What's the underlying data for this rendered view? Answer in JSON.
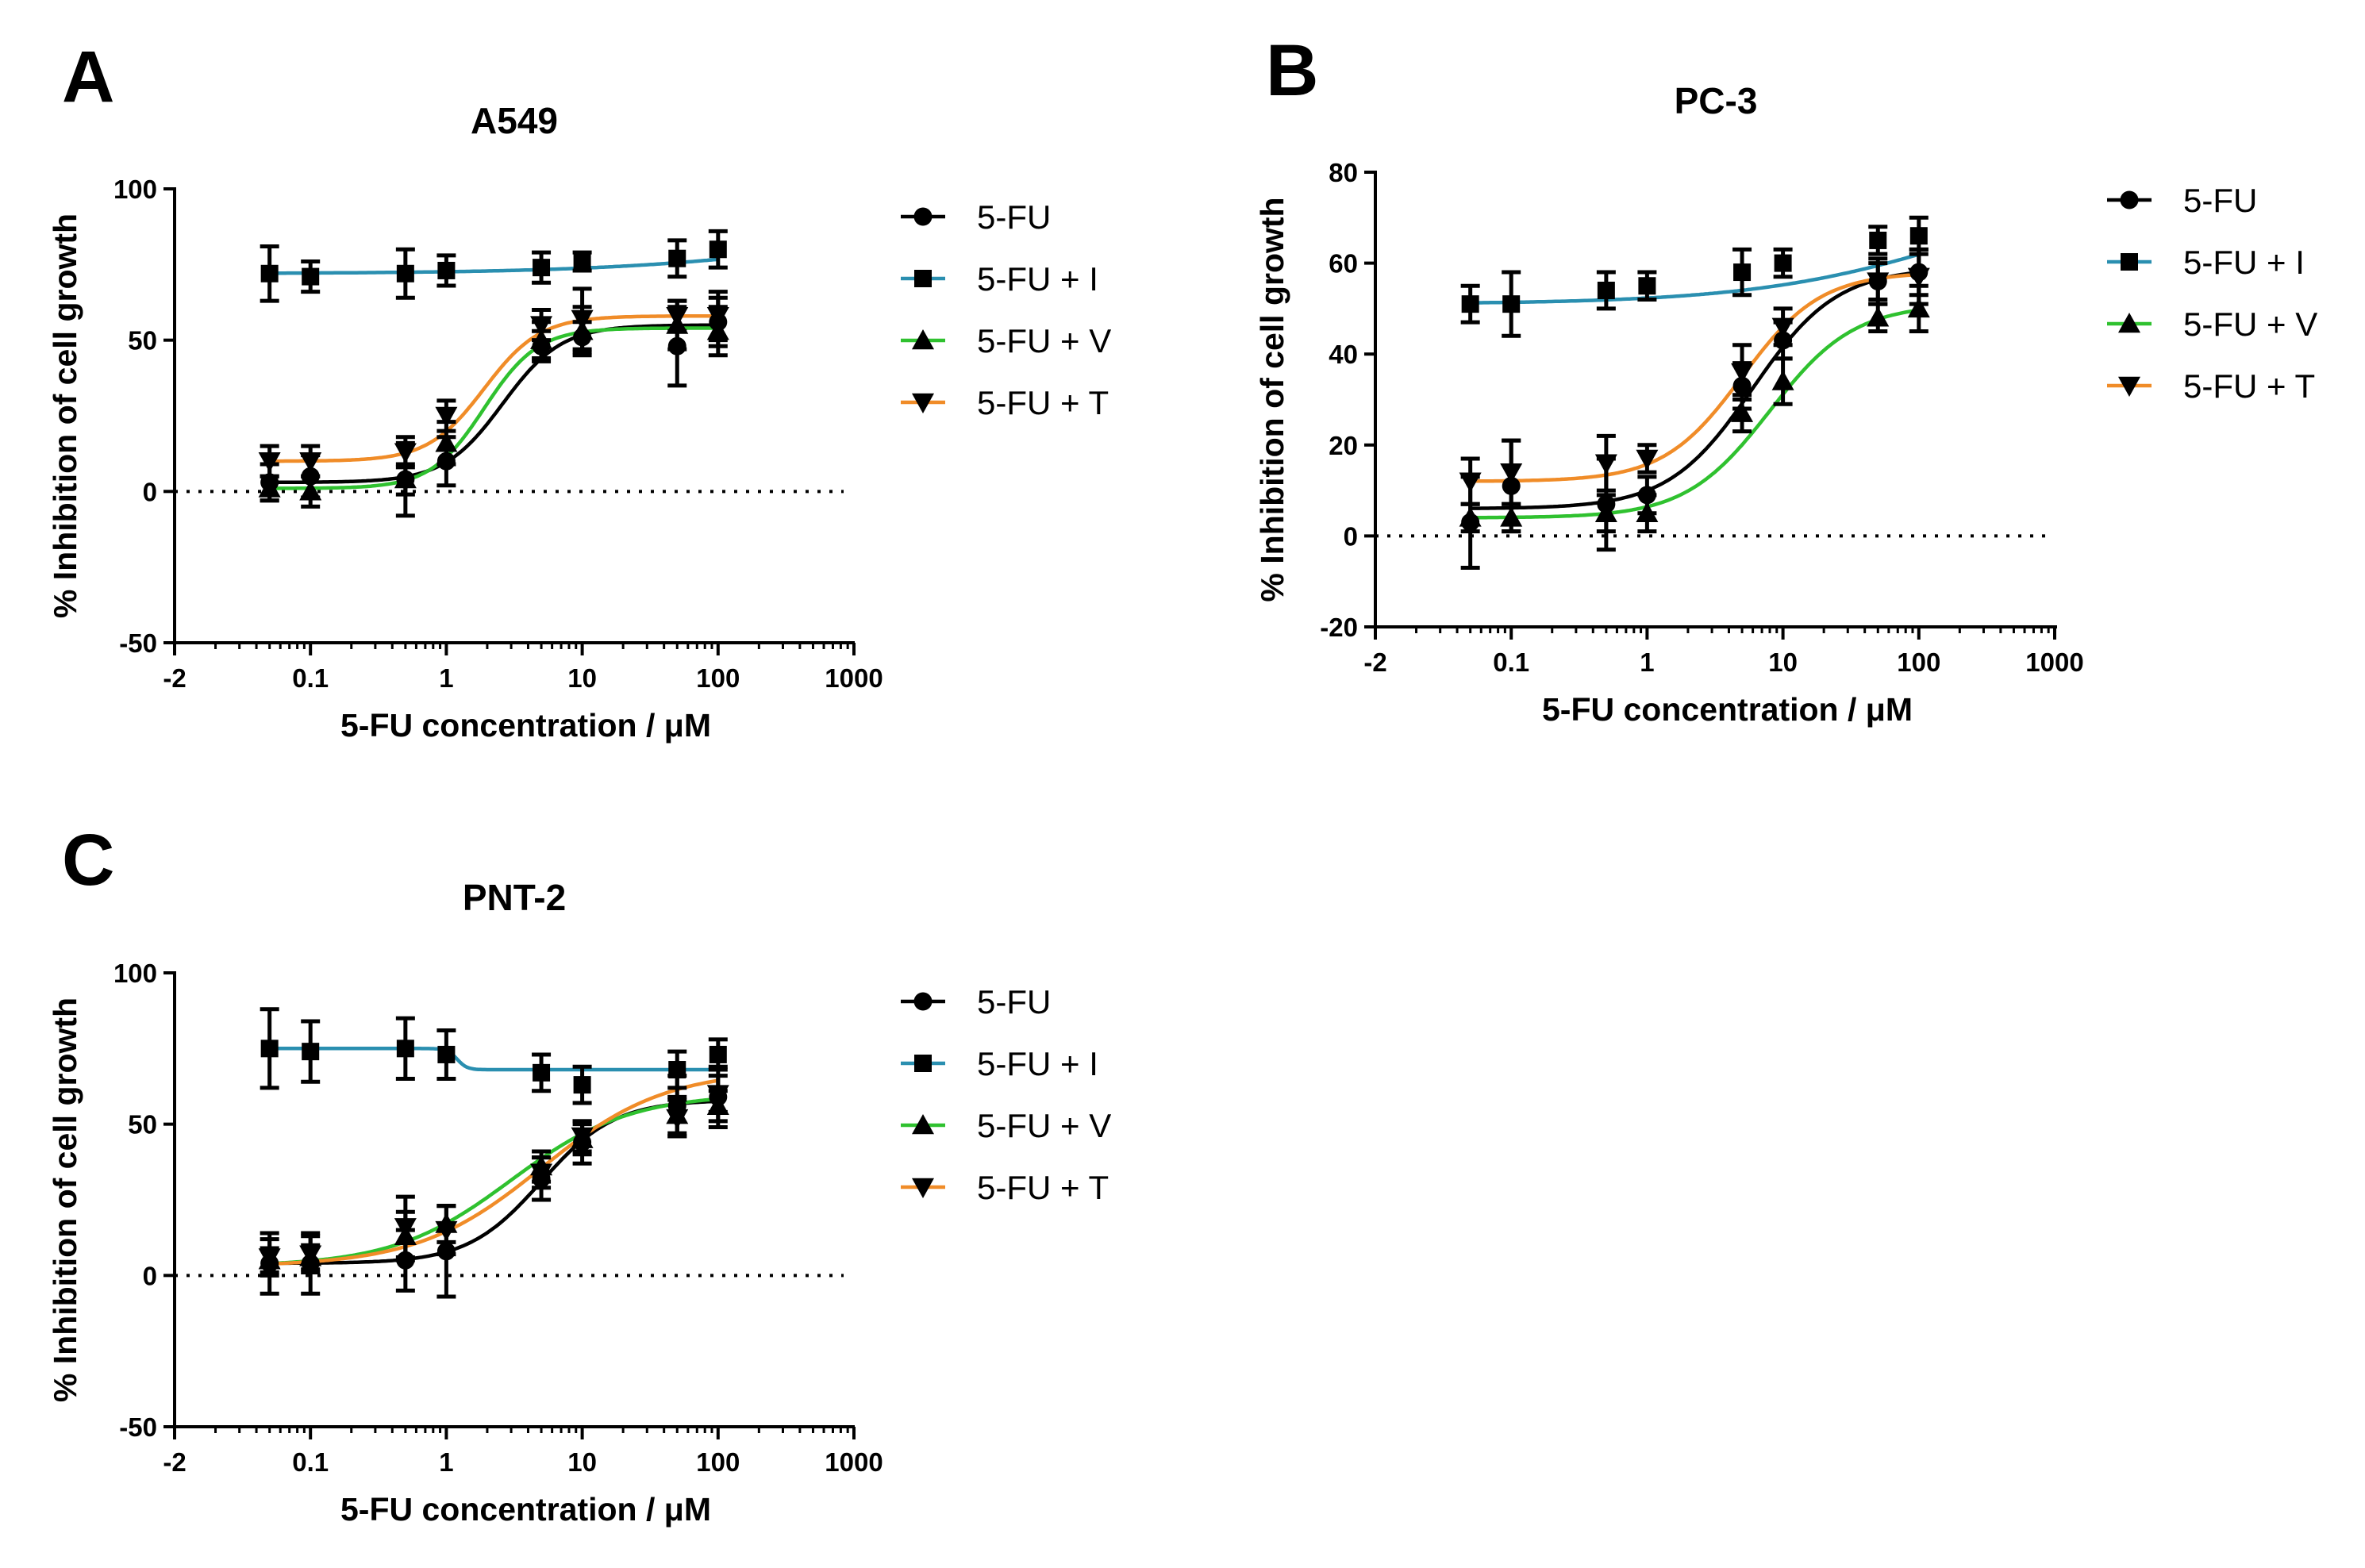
{
  "chart_data": [
    {
      "panel": "A",
      "type": "line",
      "title": "A549",
      "xlabel": "5-FU concentration / μM",
      "ylabel": "% Inhibition of cell growth",
      "xscale": "log",
      "x_ticks": [
        "-2",
        "0.1",
        "1",
        "10",
        "100",
        "1000"
      ],
      "ylim": [
        -50,
        100
      ],
      "y_ticks": [
        "-50",
        "0",
        "50",
        "100"
      ],
      "y_tick_values": [
        -50,
        0,
        50,
        100
      ],
      "reference_line_y": 0,
      "legend_position": "right",
      "x": [
        0.05,
        0.1,
        0.5,
        1,
        5,
        10,
        50,
        100
      ],
      "series": [
        {
          "name": "5-FU",
          "color": "#000000",
          "marker": "circle",
          "values": [
            3,
            5,
            4,
            10,
            48,
            51,
            48,
            56
          ],
          "errors": [
            6,
            7,
            12,
            8,
            5,
            5,
            13,
            8
          ],
          "fit": {
            "bottom": 3,
            "top": 55,
            "ec50": 2.6,
            "hill": 2.0
          }
        },
        {
          "name": "5-FU + I",
          "color": "#2a8fb0",
          "marker": "square",
          "values": [
            72,
            71,
            72,
            73,
            74,
            76,
            77,
            80
          ],
          "errors": [
            9,
            5,
            8,
            5,
            5,
            3,
            6,
            6
          ],
          "fit": {
            "bottom": 72,
            "top": 90,
            "ec50": 800,
            "hill": 0.5
          }
        },
        {
          "name": "5-FU + V",
          "color": "#2fc12f",
          "marker": "triangle-up",
          "values": [
            1,
            0,
            4,
            16,
            50,
            53,
            55,
            53
          ],
          "errors": [
            4,
            5,
            5,
            7,
            6,
            8,
            8,
            8
          ],
          "fit": {
            "bottom": 1,
            "top": 54,
            "ec50": 1.9,
            "hill": 2.2
          }
        },
        {
          "name": "5-FU + T",
          "color": "#f08c28",
          "marker": "triangle-down",
          "values": [
            10,
            10,
            13,
            25,
            55,
            57,
            58,
            58
          ],
          "errors": [
            5,
            5,
            5,
            5,
            5,
            10,
            5,
            8
          ],
          "fit": {
            "bottom": 10,
            "top": 58,
            "ec50": 1.9,
            "hill": 2.1
          }
        }
      ]
    },
    {
      "panel": "B",
      "type": "line",
      "title": "PC-3",
      "xlabel": "5-FU concentration / μM",
      "ylabel": "% Inhibition of cell growth",
      "xscale": "log",
      "x_ticks": [
        "-2",
        "0.1",
        "1",
        "10",
        "100",
        "1000"
      ],
      "ylim": [
        -20,
        80
      ],
      "y_ticks": [
        "-20",
        "0",
        "20",
        "40",
        "60",
        "80"
      ],
      "y_tick_values": [
        -20,
        0,
        20,
        40,
        60,
        80
      ],
      "reference_line_y": 0,
      "legend_position": "right",
      "x": [
        0.05,
        0.1,
        0.5,
        1,
        5,
        10,
        50,
        100
      ],
      "series": [
        {
          "name": "5-FU",
          "color": "#000000",
          "marker": "circle",
          "values": [
            3,
            11,
            7,
            9,
            33,
            43,
            56,
            58
          ],
          "errors": [
            10,
            10,
            10,
            4,
            5,
            4,
            5,
            5
          ],
          "fit": {
            "bottom": 6,
            "top": 59,
            "ec50": 6.0,
            "hill": 1.4
          }
        },
        {
          "name": "5-FU + I",
          "color": "#2a8fb0",
          "marker": "square",
          "values": [
            51,
            51,
            54,
            55,
            58,
            60,
            65,
            66
          ],
          "errors": [
            4,
            7,
            4,
            3,
            5,
            3,
            3,
            4
          ],
          "fit": {
            "bottom": 51,
            "top": 80,
            "ec50": 250,
            "hill": 0.55
          }
        },
        {
          "name": "5-FU + V",
          "color": "#2fc12f",
          "marker": "triangle-up",
          "values": [
            4,
            4,
            5,
            5,
            27,
            34,
            48,
            50
          ],
          "errors": [
            3,
            3,
            4,
            4,
            4,
            5,
            3,
            5
          ],
          "fit": {
            "bottom": 4,
            "top": 51,
            "ec50": 8.0,
            "hill": 1.4
          }
        },
        {
          "name": "5-FU + T",
          "color": "#f08c28",
          "marker": "triangle-down",
          "values": [
            12,
            14,
            16,
            17,
            36,
            46,
            56,
            57
          ],
          "errors": [
            5,
            7,
            6,
            3,
            6,
            4,
            4,
            6
          ],
          "fit": {
            "bottom": 12,
            "top": 58,
            "ec50": 5.0,
            "hill": 1.5
          }
        }
      ]
    },
    {
      "panel": "C",
      "type": "line",
      "title": "PNT-2",
      "xlabel": "5-FU concentration / μM",
      "ylabel": "% Inhibition of cell growth",
      "xscale": "log",
      "x_ticks": [
        "-2",
        "0.1",
        "1",
        "10",
        "100",
        "1000"
      ],
      "ylim": [
        -50,
        100
      ],
      "y_ticks": [
        "-50",
        "0",
        "50",
        "100"
      ],
      "y_tick_values": [
        -50,
        0,
        50,
        100
      ],
      "reference_line_y": 0,
      "legend_position": "right",
      "x": [
        0.05,
        0.1,
        0.5,
        1,
        5,
        10,
        50,
        100
      ],
      "series": [
        {
          "name": "5-FU",
          "color": "#000000",
          "marker": "circle",
          "values": [
            4,
            4,
            5,
            8,
            32,
            44,
            56,
            59
          ],
          "errors": [
            10,
            10,
            10,
            15,
            7,
            7,
            10,
            10
          ],
          "fit": {
            "bottom": 4,
            "top": 58,
            "ec50": 5.0,
            "hill": 1.6
          }
        },
        {
          "name": "5-FU + I",
          "color": "#2a8fb0",
          "marker": "square",
          "values": [
            75,
            74,
            75,
            73,
            67,
            63,
            68,
            73
          ],
          "errors": [
            13,
            10,
            10,
            8,
            6,
            6,
            6,
            5
          ],
          "fit": {
            "bottom": 75,
            "top": 68,
            "ec50": 1.2,
            "hill": 12
          }
        },
        {
          "name": "5-FU + V",
          "color": "#2fc12f",
          "marker": "triangle-up",
          "values": [
            5,
            6,
            13,
            17,
            36,
            45,
            53,
            56
          ],
          "errors": [
            4,
            4,
            8,
            6,
            5,
            5,
            6,
            5
          ],
          "fit": {
            "bottom": 3,
            "top": 60,
            "ec50": 3.0,
            "hill": 1.0
          }
        },
        {
          "name": "5-FU + T",
          "color": "#f08c28",
          "marker": "triangle-down",
          "values": [
            6,
            7,
            16,
            15,
            34,
            46,
            52,
            60
          ],
          "errors": [
            6,
            6,
            10,
            8,
            5,
            5,
            6,
            6
          ],
          "fit": {
            "bottom": 3,
            "top": 68,
            "ec50": 5.0,
            "hill": 0.95
          }
        }
      ]
    }
  ]
}
